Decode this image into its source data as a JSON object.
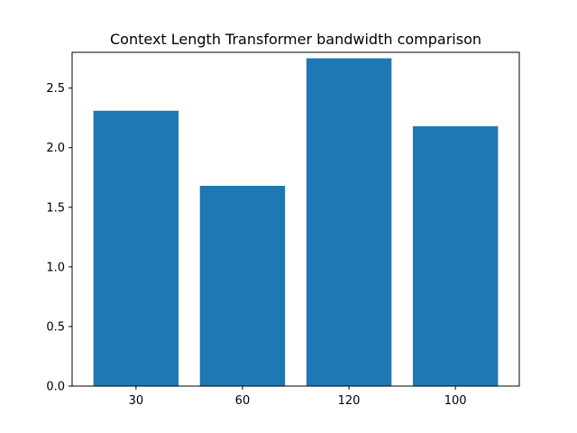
{
  "chart_data": {
    "type": "bar",
    "title": "Context Length Transformer bandwidth comparison",
    "xlabel": "",
    "ylabel": "",
    "categories": [
      "30",
      "60",
      "120",
      "100"
    ],
    "values": [
      2.31,
      1.68,
      2.75,
      2.18
    ],
    "ylim": [
      0,
      2.8
    ],
    "yticks": [
      "0.0",
      "0.5",
      "1.0",
      "1.5",
      "2.0",
      "2.5"
    ],
    "bar_color": "#1f77b4",
    "grid": false,
    "legend": false
  }
}
